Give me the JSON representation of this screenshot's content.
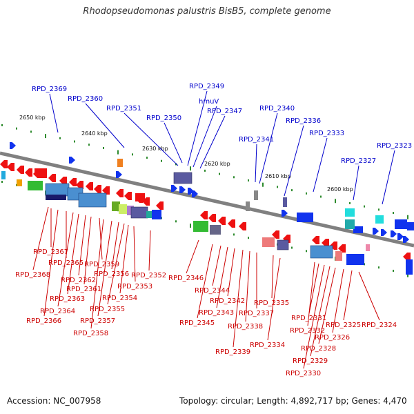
{
  "title": "Rhodopseudomonas palustris BisB5, complete genome",
  "accession": "Accession: NC_007958",
  "summary": "Topology: circular; Length: 4,892,717 bp; Genes: 4,470",
  "colors": {
    "forward_label": "#0000cc",
    "reverse_label": "#cc0000",
    "backbone": "#808080",
    "tick": "#2e8b2e"
  },
  "kbp_marks": [
    "2650 kbp",
    "2640 kbp",
    "2630 kbp",
    "2620 kbp",
    "2610 kbp",
    "2600 kbp"
  ],
  "forward_labels": [
    "RPD_2369",
    "RPD_2360",
    "RPD_2351",
    "RPD_2350",
    "RPD_2349",
    "hmuV",
    "RPD_2347",
    "RPD_2341",
    "RPD_2340",
    "RPD_2336",
    "RPD_2333",
    "RPD_2327",
    "RPD_2323"
  ],
  "reverse_labels": [
    "RPD_2368",
    "RPD_2367",
    "RPD_2366",
    "RPD_2365",
    "RPD_2364",
    "RPD_2363",
    "RPD_2362",
    "RPD_2361",
    "RPD_2359",
    "RPD_2358",
    "RPD_2357",
    "RPD_2356",
    "RPD_2355",
    "RPD_2354",
    "RPD_2353",
    "RPD_2352",
    "RPD_2346",
    "RPD_2345",
    "RPD_2344",
    "RPD_2343",
    "RPD_2342",
    "RPD_2339",
    "RPD_2338",
    "RPD_2337",
    "RPD_2335",
    "RPD_2334",
    "RPD_2332",
    "RPD_2331",
    "RPD_2330",
    "RPD_2329",
    "RPD_2328",
    "RPD_2326",
    "RPD_2325",
    "RPD_2324"
  ]
}
